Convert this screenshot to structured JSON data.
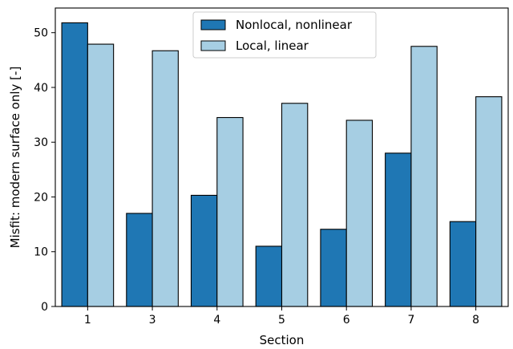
{
  "chart_data": {
    "type": "bar",
    "title": "",
    "xlabel": "Section",
    "ylabel": "Misfit: modern surface only [-]",
    "categories": [
      "1",
      "3",
      "4",
      "5",
      "6",
      "7",
      "8"
    ],
    "series": [
      {
        "name": "Nonlocal, nonlinear",
        "color": "#1f77b4",
        "values": [
          51.8,
          17.0,
          20.3,
          11.0,
          14.1,
          28.0,
          15.5
        ]
      },
      {
        "name": "Local, linear",
        "color": "#a6cee3",
        "values": [
          47.9,
          46.7,
          34.5,
          37.1,
          34.0,
          47.5,
          38.3
        ]
      }
    ],
    "ylim": [
      0,
      54.5
    ],
    "yticks": [
      0,
      10,
      20,
      30,
      40,
      50
    ],
    "grid": false,
    "legend_position": "top-center"
  }
}
